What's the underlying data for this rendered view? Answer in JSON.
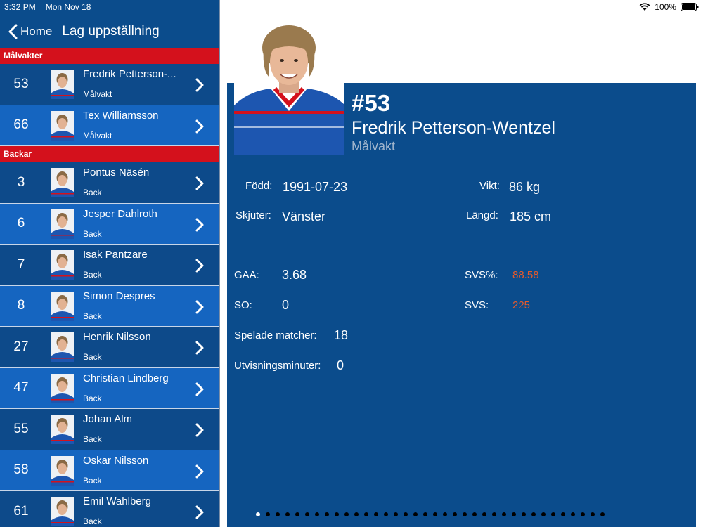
{
  "status": {
    "time": "3:32 PM",
    "date": "Mon Nov 18",
    "battery": "100%"
  },
  "nav": {
    "back_label": "Home",
    "title": "Lag uppställning"
  },
  "sections": [
    {
      "title": "Målvakter",
      "players": [
        {
          "number": "53",
          "name": "Fredrik Petterson-...",
          "position": "Målvakt"
        },
        {
          "number": "66",
          "name": "Tex Williamsson",
          "position": "Målvakt"
        }
      ]
    },
    {
      "title": "Backar",
      "players": [
        {
          "number": "3",
          "name": "Pontus Näsén",
          "position": "Back"
        },
        {
          "number": "6",
          "name": "Jesper Dahlroth",
          "position": "Back"
        },
        {
          "number": "7",
          "name": "Isak Pantzare",
          "position": "Back"
        },
        {
          "number": "8",
          "name": "Simon Despres",
          "position": "Back"
        },
        {
          "number": "27",
          "name": "Henrik Nilsson",
          "position": "Back"
        },
        {
          "number": "47",
          "name": "Christian Lindberg",
          "position": "Back"
        },
        {
          "number": "55",
          "name": "Johan Alm",
          "position": "Back"
        },
        {
          "number": "58",
          "name": "Oskar Nilsson",
          "position": "Back"
        },
        {
          "number": "61",
          "name": "Emil Wahlberg",
          "position": "Back"
        }
      ]
    }
  ],
  "detail": {
    "number": "#53",
    "name": "Fredrik Petterson-Wentzel",
    "position": "Målvakt",
    "born_label": "Född:",
    "born": "1991-07-23",
    "weight_label": "Vikt:",
    "weight": "86 kg",
    "shoots_label": "Skjuter:",
    "shoots": "Vänster",
    "height_label": "Längd:",
    "height": "185 cm",
    "gaa_label": "GAA:",
    "gaa": "3.68",
    "svs_pct_label": "SVS%:",
    "svs_pct": "88.58",
    "so_label": "SO:",
    "so": "0",
    "svs_label": "SVS:",
    "svs": "225",
    "games_label": "Spelade matcher:",
    "games": "18",
    "pim_label": "Utvisningsminuter:",
    "pim": "0"
  },
  "pager": {
    "count": 36,
    "active_index": 0
  },
  "colors": {
    "primary_blue": "#0b4c8c",
    "light_row": "#1565c0",
    "section_red": "#d4111c",
    "stat_highlight": "#e65a2c"
  }
}
